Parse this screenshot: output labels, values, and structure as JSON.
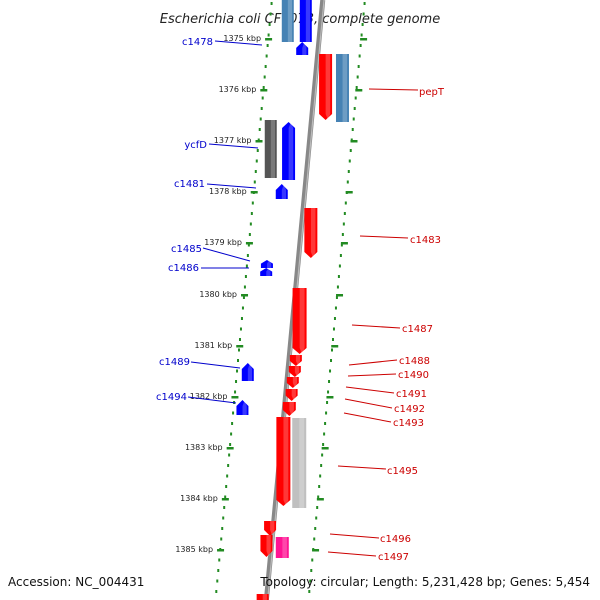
{
  "title": "Escherichia coli CFT073, complete genome",
  "footer": {
    "accession": "Accession: NC_004431",
    "topology": "Topology: circular; Length: 5,231,428 bp; Genes: 5,454"
  },
  "colors": {
    "forward_gene": "#0000ff",
    "reverse_gene": "#ff0000",
    "forward_label": "#0000cc",
    "reverse_label": "#cc0000",
    "steel": "#4682b4",
    "grey": "#555555",
    "lightgrey": "#c0c0c0",
    "magenta": "#ff1493",
    "axis_dots": "#228b22",
    "backbone": "#888888"
  },
  "axis_ticks": [
    {
      "label": "1375 kbp"
    },
    {
      "label": "1376 kbp"
    },
    {
      "label": "1377 kbp"
    },
    {
      "label": "1378 kbp"
    },
    {
      "label": "1379 kbp"
    },
    {
      "label": "1380 kbp"
    },
    {
      "label": "1381 kbp"
    },
    {
      "label": "1382 kbp"
    },
    {
      "label": "1383 kbp"
    },
    {
      "label": "1384 kbp"
    },
    {
      "label": "1385 kbp"
    }
  ],
  "forward_labels": [
    {
      "id": "c1478",
      "label": "c1478"
    },
    {
      "id": "ycfd",
      "label": "ycfD"
    },
    {
      "id": "c1481",
      "label": "c1481"
    },
    {
      "id": "c1485",
      "label": "c1485"
    },
    {
      "id": "c1486",
      "label": "c1486"
    },
    {
      "id": "c1489",
      "label": "c1489"
    },
    {
      "id": "c1494",
      "label": "c1494"
    }
  ],
  "reverse_labels": [
    {
      "id": "pept",
      "label": "pepT"
    },
    {
      "id": "c1483",
      "label": "c1483"
    },
    {
      "id": "c1487",
      "label": "c1487"
    },
    {
      "id": "c1488",
      "label": "c1488"
    },
    {
      "id": "c1490",
      "label": "c1490"
    },
    {
      "id": "c1491",
      "label": "c1491"
    },
    {
      "id": "c1492",
      "label": "c1492"
    },
    {
      "id": "c1493",
      "label": "c1493"
    },
    {
      "id": "c1495",
      "label": "c1495"
    },
    {
      "id": "c1496",
      "label": "c1496"
    },
    {
      "id": "c1497",
      "label": "c1497"
    }
  ]
}
